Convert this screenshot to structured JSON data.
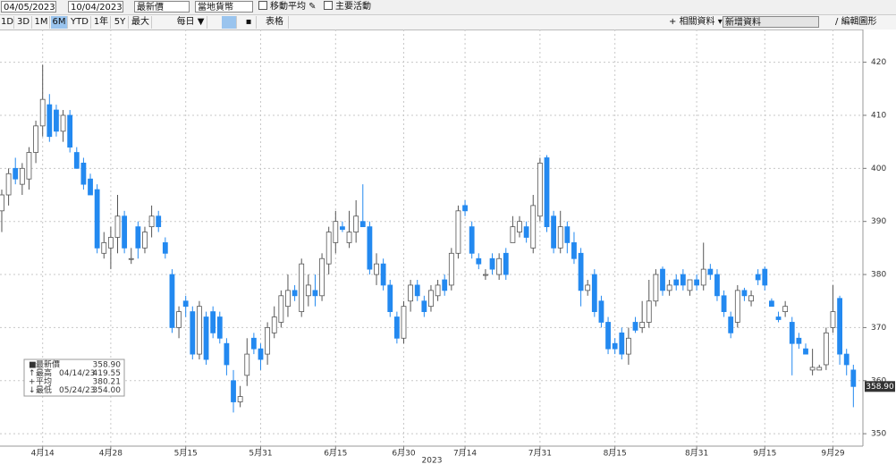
{
  "toolbar": {
    "start_date": "04/05/2023",
    "end_date": "10/04/2023",
    "field": "最新價",
    "currency": "當地貨幣",
    "checkbox_1": "移動平均",
    "checkbox_2": "主要活動",
    "ranges": [
      "1D",
      "3D",
      "1M",
      "6M",
      "YTD",
      "1年",
      "5Y",
      "最大"
    ],
    "frequency": "每日 ▼",
    "table": "表格",
    "related": "相關資料",
    "add_data": "新增資料",
    "edit": "編輯圖形"
  },
  "chart_data": {
    "type": "candlestick",
    "xlabel": "2023",
    "up_color": "#ffffff",
    "down_color": "#2389f0",
    "grid": true,
    "xlim": [
      -0.26,
      126.4
    ],
    "ylim": [
      348,
      426
    ],
    "xticks": [
      {
        "value": 6,
        "label": "4月14"
      },
      {
        "value": 16,
        "label": "4月28"
      },
      {
        "value": 27,
        "label": "5月15"
      },
      {
        "value": 38,
        "label": "5月31"
      },
      {
        "value": 49,
        "label": "6月15"
      },
      {
        "value": 59,
        "label": "6月30"
      },
      {
        "value": 68,
        "label": "7月14"
      },
      {
        "value": 79,
        "label": "7月31"
      },
      {
        "value": 90,
        "label": "8月15"
      },
      {
        "value": 102,
        "label": "8月31"
      },
      {
        "value": 112,
        "label": "9月15"
      },
      {
        "value": 122,
        "label": "9月29"
      }
    ],
    "yticks": [
      350,
      360,
      370,
      380,
      390,
      400,
      410,
      420
    ],
    "open": [
      392,
      395,
      400,
      397,
      398,
      403,
      408,
      412,
      411,
      407,
      410,
      403,
      401,
      398,
      396,
      384,
      385,
      387,
      391,
      383,
      389,
      385,
      389,
      391,
      386,
      380,
      370,
      375,
      373,
      365,
      372,
      373,
      372,
      367,
      360,
      356,
      361,
      368,
      366,
      365,
      369,
      371,
      374,
      377,
      373,
      376,
      377,
      376,
      382,
      386,
      389,
      386,
      388,
      390,
      389,
      380,
      382,
      378,
      372,
      368,
      375,
      378,
      375,
      374,
      376,
      379,
      378,
      384,
      393,
      389,
      383,
      380,
      383,
      380,
      384,
      386,
      388,
      389,
      385,
      391,
      402,
      391,
      385,
      389,
      386,
      384,
      377,
      380,
      375,
      371,
      367,
      369,
      365,
      371,
      370,
      371,
      375,
      381,
      377,
      379,
      380,
      377,
      379,
      378,
      381,
      380,
      376,
      372,
      371,
      377,
      375,
      380,
      381,
      375,
      372,
      373,
      371,
      368,
      366,
      362,
      362,
      363,
      370,
      375.5,
      365,
      362
    ],
    "high": [
      396,
      400,
      402,
      401,
      404,
      409,
      419.55,
      414,
      412,
      411,
      411,
      404,
      402,
      399,
      397,
      388,
      389,
      395,
      392,
      385,
      390,
      389,
      393,
      392,
      387,
      381,
      374,
      376,
      374,
      375,
      373,
      374,
      373,
      368,
      362,
      359,
      368,
      369,
      367,
      371,
      374,
      377,
      380,
      378,
      383,
      380,
      380,
      384,
      389,
      392,
      390,
      392,
      394,
      397,
      390,
      384,
      383,
      379,
      373,
      375,
      379,
      379,
      376,
      378,
      379,
      380,
      385,
      393,
      394,
      390,
      384,
      381,
      384,
      384,
      385,
      391,
      391,
      390,
      395,
      402,
      402.5,
      392,
      392,
      390,
      388,
      385,
      379,
      381,
      376,
      372,
      368,
      370,
      370,
      372,
      375,
      379,
      381,
      381.5,
      379,
      380,
      381,
      379,
      380,
      386,
      382,
      381,
      377,
      373,
      378,
      377.5,
      377,
      381,
      381.5,
      375.5,
      373,
      375,
      372,
      369,
      367,
      366,
      363,
      370,
      378,
      376,
      366,
      363
    ],
    "low": [
      388,
      393,
      397,
      395,
      396,
      401,
      406,
      405,
      406,
      405,
      403,
      400,
      396,
      395,
      384,
      383,
      381,
      384,
      384,
      382,
      383,
      384,
      387,
      388,
      383,
      369,
      368,
      372,
      364,
      364,
      363,
      368,
      367,
      361,
      354,
      355,
      359,
      365,
      362,
      363,
      368,
      370,
      372,
      375,
      372,
      374,
      374,
      375,
      380,
      384,
      388,
      385,
      386,
      389,
      380,
      378,
      377,
      372,
      367,
      367,
      373,
      375,
      372,
      373,
      375,
      376,
      377,
      383,
      391,
      383,
      381,
      379,
      380,
      379,
      379,
      386,
      387,
      386,
      384,
      390,
      388,
      384,
      384,
      384,
      382,
      374,
      376,
      372,
      370,
      365,
      365,
      364,
      363,
      369,
      369,
      370,
      374,
      376,
      376,
      377,
      377,
      376,
      377,
      377,
      379,
      375,
      372,
      368,
      370,
      375,
      374,
      378,
      377,
      374,
      371,
      372,
      361,
      366,
      365,
      361,
      362,
      362,
      369,
      363,
      361,
      355
    ],
    "close": [
      395,
      399,
      398,
      400,
      403,
      408,
      413,
      406,
      407,
      410,
      404,
      400,
      397,
      395,
      385,
      386,
      387,
      391,
      385,
      383,
      385,
      388,
      391,
      389,
      384,
      370,
      373,
      374,
      365,
      374,
      364,
      369,
      368,
      363,
      356,
      357,
      365,
      366,
      364,
      370,
      372,
      376,
      377,
      376,
      382,
      378,
      376,
      383,
      388,
      390,
      388.5,
      388,
      391,
      389,
      381,
      382,
      378,
      373,
      368,
      374,
      378,
      376,
      373,
      377,
      378,
      377,
      384,
      392,
      392,
      384,
      382,
      380,
      381,
      383,
      380,
      389,
      390,
      387,
      393,
      401,
      389,
      385,
      389,
      386,
      383,
      377,
      378,
      373,
      371,
      366,
      366,
      365,
      368,
      369.5,
      371,
      375,
      380,
      377,
      378,
      378,
      378,
      379,
      378,
      381,
      380,
      376,
      373,
      369,
      377,
      376,
      376,
      379,
      378,
      374,
      371.5,
      374,
      367,
      367,
      365,
      362.5,
      362.5,
      369,
      373,
      365,
      363,
      358.9
    ],
    "legend_stats": {
      "names": [
        "最新價",
        "最高",
        "平均",
        "最低"
      ],
      "dates": [
        null,
        "04/14/23",
        null,
        "05/24/23"
      ],
      "values": [
        358.9,
        419.55,
        380.21,
        354
      ],
      "value_labels": [
        "358.90",
        "419.55",
        "380.21",
        "354.00"
      ]
    }
  }
}
